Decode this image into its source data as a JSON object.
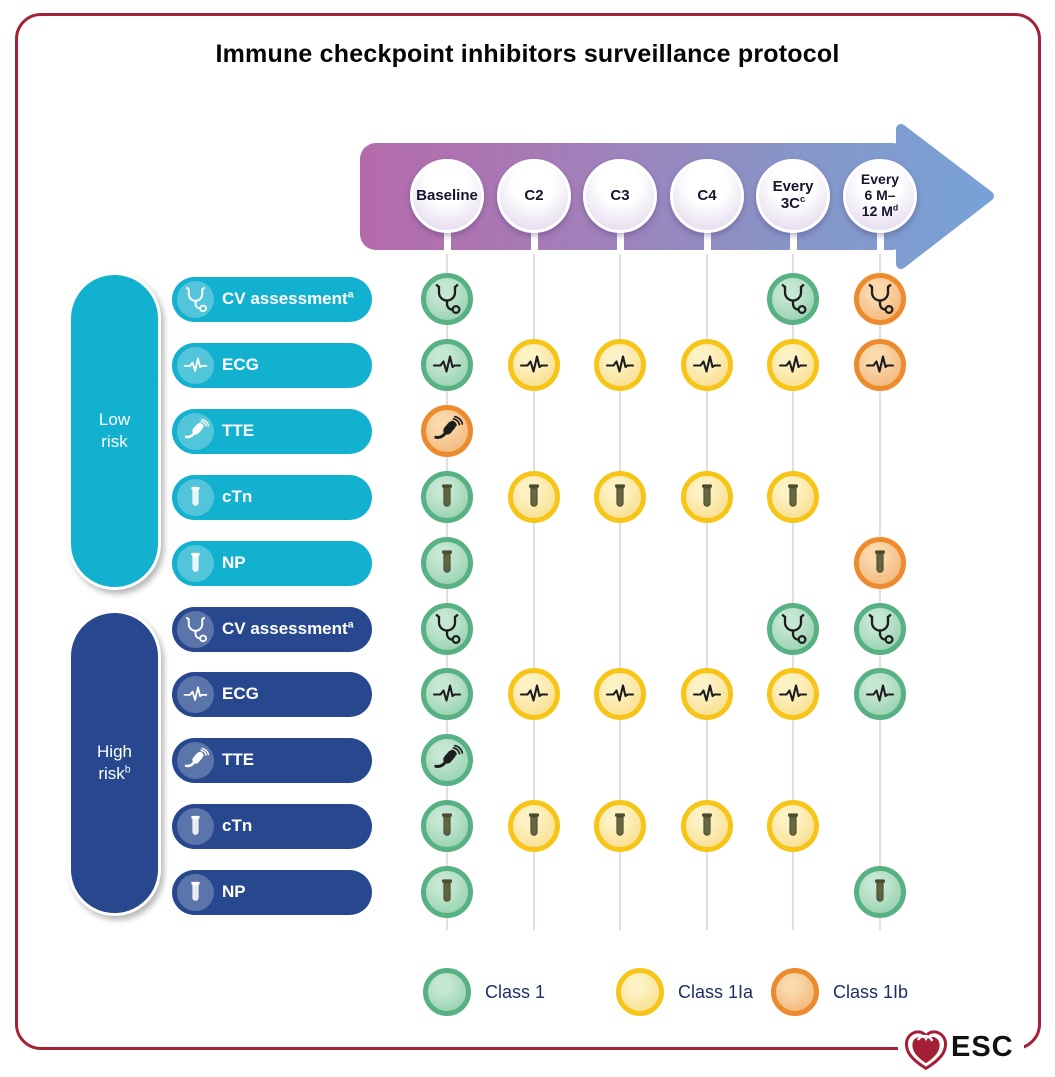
{
  "title": "Immune checkpoint inhibitors surveillance protocol",
  "timeline": {
    "columns": [
      {
        "id": "baseline",
        "lines": [
          "Baseline"
        ],
        "sup": ""
      },
      {
        "id": "c2",
        "lines": [
          "C2"
        ],
        "sup": ""
      },
      {
        "id": "c3",
        "lines": [
          "C3"
        ],
        "sup": ""
      },
      {
        "id": "c4",
        "lines": [
          "C4"
        ],
        "sup": ""
      },
      {
        "id": "every-3c",
        "lines": [
          "Every",
          "3C"
        ],
        "sup": "c"
      },
      {
        "id": "every-6-12m",
        "lines": [
          "Every",
          "6 M–",
          "12 M"
        ],
        "sup": "d"
      }
    ]
  },
  "groups": [
    {
      "id": "low-risk",
      "label_lines": [
        "Low",
        "risk"
      ],
      "sup": "",
      "color": "#13b1d0",
      "icon_bg": "#53c5da",
      "rows": [
        {
          "id": "cv-assessment",
          "icon": "stethoscope",
          "label": "CV assessment",
          "sup": "a",
          "marks": [
            "class1",
            null,
            null,
            null,
            "class1",
            "class2b"
          ]
        },
        {
          "id": "ecg",
          "icon": "ecg",
          "label": "ECG",
          "sup": "",
          "marks": [
            "class1",
            "class2a",
            "class2a",
            "class2a",
            "class2a",
            "class2b"
          ]
        },
        {
          "id": "tte",
          "icon": "probe",
          "label": "TTE",
          "sup": "",
          "marks": [
            "class2b",
            null,
            null,
            null,
            null,
            null
          ]
        },
        {
          "id": "ctn",
          "icon": "tube",
          "label": "cTn",
          "sup": "",
          "marks": [
            "class1",
            "class2a",
            "class2a",
            "class2a",
            "class2a",
            null
          ]
        },
        {
          "id": "np",
          "icon": "tube",
          "label": "NP",
          "sup": "",
          "marks": [
            "class1",
            null,
            null,
            null,
            null,
            "class2b"
          ]
        }
      ]
    },
    {
      "id": "high-risk",
      "label_lines": [
        "High",
        "risk"
      ],
      "sup": "b",
      "color": "#27488e",
      "icon_bg": "#5b74aa",
      "rows": [
        {
          "id": "cv-assessment",
          "icon": "stethoscope",
          "label": "CV assessment",
          "sup": "a",
          "marks": [
            "class1",
            null,
            null,
            null,
            "class1",
            "class1"
          ]
        },
        {
          "id": "ecg",
          "icon": "ecg",
          "label": "ECG",
          "sup": "",
          "marks": [
            "class1",
            "class2a",
            "class2a",
            "class2a",
            "class2a",
            "class1"
          ]
        },
        {
          "id": "tte",
          "icon": "probe",
          "label": "TTE",
          "sup": "",
          "marks": [
            "class1",
            null,
            null,
            null,
            null,
            null
          ]
        },
        {
          "id": "ctn",
          "icon": "tube",
          "label": "cTn",
          "sup": "",
          "marks": [
            "class1",
            "class2a",
            "class2a",
            "class2a",
            "class2a",
            null
          ]
        },
        {
          "id": "np",
          "icon": "tube",
          "label": "NP",
          "sup": "",
          "marks": [
            "class1",
            null,
            null,
            null,
            null,
            "class1"
          ]
        }
      ]
    }
  ],
  "classes": {
    "class1": {
      "ring": "#58b183",
      "fill_light": "#c6e7d3",
      "fill": "#96d2b0"
    },
    "class2a": {
      "ring": "#f6c517",
      "fill_light": "#fdf2c5",
      "fill": "#f9df8d"
    },
    "class2b": {
      "ring": "#eb8b2d",
      "fill_light": "#fad9ad",
      "fill": "#f2b679"
    }
  },
  "glyph_colors": {
    "dark": "#1d1d1d",
    "tube": "#4c4d2e",
    "white": "#ffffff"
  },
  "legend": [
    {
      "class": "class1",
      "label": "Class 1"
    },
    {
      "class": "class2a",
      "label": "Class 1Ia"
    },
    {
      "class": "class2b",
      "label": "Class 1Ib"
    }
  ],
  "logo": {
    "text": "ESC",
    "heart_color": "#a41e35"
  }
}
